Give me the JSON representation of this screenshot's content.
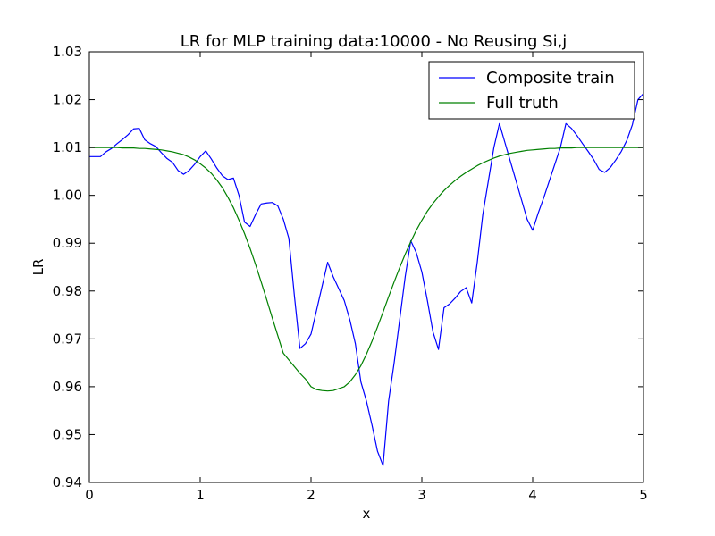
{
  "chart_data": {
    "type": "line",
    "title": "LR for MLP training data:10000 - No Reusing Si,j",
    "xlabel": "x",
    "ylabel": "LR",
    "xlim": [
      0,
      5
    ],
    "ylim": [
      0.94,
      1.03
    ],
    "xticks": [
      "0",
      "1",
      "2",
      "3",
      "4",
      "5"
    ],
    "yticks": [
      "0.94",
      "0.95",
      "0.96",
      "0.97",
      "0.98",
      "0.99",
      "1.00",
      "1.01",
      "1.02",
      "1.03"
    ],
    "grid": false,
    "legend_position": "upper right",
    "colors": {
      "composite": "#0000ff",
      "truth": "#008000"
    },
    "series": [
      {
        "name": "Composite train",
        "color": "#0000ff",
        "x": [
          0,
          0.05,
          0.1,
          0.15,
          0.2,
          0.25,
          0.3,
          0.35,
          0.4,
          0.45,
          0.5,
          0.55,
          0.6,
          0.65,
          0.7,
          0.75,
          0.8,
          0.85,
          0.9,
          0.95,
          1.0,
          1.05,
          1.1,
          1.15,
          1.2,
          1.25,
          1.3,
          1.35,
          1.4,
          1.45,
          1.5,
          1.55,
          1.6,
          1.65,
          1.7,
          1.75,
          1.8,
          1.85,
          1.9,
          1.95,
          2.0,
          2.05,
          2.1,
          2.15,
          2.2,
          2.25,
          2.3,
          2.35,
          2.4,
          2.45,
          2.5,
          2.55,
          2.6,
          2.65,
          2.7,
          2.75,
          2.8,
          2.85,
          2.9,
          2.95,
          3.0,
          3.05,
          3.1,
          3.15,
          3.2,
          3.25,
          3.3,
          3.35,
          3.4,
          3.45,
          3.5,
          3.55,
          3.6,
          3.65,
          3.7,
          3.75,
          3.8,
          3.85,
          3.9,
          3.95,
          4.0,
          4.05,
          4.1,
          4.15,
          4.2,
          4.25,
          4.3,
          4.35,
          4.4,
          4.45,
          4.5,
          4.55,
          4.6,
          4.65,
          4.7,
          4.75,
          4.8,
          4.85,
          4.9,
          4.95,
          5.0
        ],
        "y": [
          1.0081,
          1.0081,
          1.0081,
          1.0091,
          1.0098,
          1.0108,
          1.0117,
          1.0127,
          1.0139,
          1.014,
          1.0116,
          1.0108,
          1.0102,
          1.0089,
          1.0077,
          1.0069,
          1.0052,
          1.0044,
          1.0052,
          1.0065,
          1.0081,
          1.0093,
          1.0076,
          1.0057,
          1.0041,
          1.0033,
          1.0036,
          1.0,
          0.9944,
          0.9935,
          0.996,
          0.9982,
          0.9984,
          0.9985,
          0.9978,
          0.995,
          0.991,
          0.979,
          0.968,
          0.969,
          0.971,
          0.976,
          0.981,
          0.986,
          0.983,
          0.9805,
          0.978,
          0.974,
          0.969,
          0.961,
          0.957,
          0.952,
          0.9465,
          0.9435,
          0.957,
          0.965,
          0.974,
          0.983,
          0.9905,
          0.988,
          0.984,
          0.978,
          0.9715,
          0.9678,
          0.9765,
          0.9773,
          0.9785,
          0.9799,
          0.9807,
          0.9775,
          0.986,
          0.996,
          1.003,
          1.01,
          1.015,
          1.011,
          1.007,
          1.003,
          0.999,
          0.995,
          0.9927,
          0.9963,
          0.9995,
          1.003,
          1.0065,
          1.01,
          1.015,
          1.014,
          1.0125,
          1.0108,
          1.0092,
          1.0075,
          1.0054,
          1.0048,
          1.0058,
          1.0074,
          1.0092,
          1.0115,
          1.0148,
          1.02,
          1.0213
        ]
      },
      {
        "name": "Full truth",
        "color": "#008000",
        "x": [
          0,
          0.05,
          0.1,
          0.15,
          0.2,
          0.25,
          0.3,
          0.35,
          0.4,
          0.45,
          0.5,
          0.55,
          0.6,
          0.65,
          0.7,
          0.75,
          0.8,
          0.85,
          0.9,
          0.95,
          1.0,
          1.05,
          1.1,
          1.15,
          1.2,
          1.25,
          1.3,
          1.35,
          1.4,
          1.45,
          1.5,
          1.55,
          1.6,
          1.65,
          1.7,
          1.75,
          1.8,
          1.85,
          1.9,
          1.95,
          2.0,
          2.05,
          2.1,
          2.15,
          2.2,
          2.25,
          2.3,
          2.35,
          2.4,
          2.45,
          2.5,
          2.55,
          2.6,
          2.65,
          2.7,
          2.75,
          2.8,
          2.85,
          2.9,
          2.95,
          3.0,
          3.05,
          3.1,
          3.15,
          3.2,
          3.25,
          3.3,
          3.35,
          3.4,
          3.45,
          3.5,
          3.55,
          3.6,
          3.65,
          3.7,
          3.75,
          3.8,
          3.85,
          3.9,
          3.95,
          4.0,
          4.05,
          4.1,
          4.15,
          4.2,
          4.25,
          4.3,
          4.35,
          4.4,
          4.45,
          4.5,
          4.55,
          4.6,
          4.65,
          4.7,
          4.75,
          4.8,
          4.85,
          4.9,
          4.95,
          5.0
        ],
        "y": [
          1.01,
          1.01,
          1.01,
          1.01,
          1.01,
          1.01,
          1.0099,
          1.0099,
          1.0099,
          1.0098,
          1.0098,
          1.0097,
          1.0096,
          1.0095,
          1.0093,
          1.0091,
          1.0088,
          1.0085,
          1.008,
          1.0074,
          1.0066,
          1.0057,
          1.0046,
          1.0032,
          1.0016,
          0.9996,
          0.9974,
          0.9948,
          0.992,
          0.9889,
          0.9855,
          0.9819,
          0.9782,
          0.9744,
          0.9707,
          0.967,
          0.9656,
          0.9642,
          0.9628,
          0.9616,
          0.96,
          0.9594,
          0.9592,
          0.9591,
          0.9592,
          0.9596,
          0.96,
          0.961,
          0.9625,
          0.9644,
          0.9668,
          0.9695,
          0.9725,
          0.9756,
          0.9788,
          0.9819,
          0.9849,
          0.9877,
          0.9903,
          0.9927,
          0.9948,
          0.9967,
          0.9983,
          0.9997,
          1.001,
          1.0021,
          1.0031,
          1.004,
          1.0048,
          1.0055,
          1.0062,
          1.0068,
          1.0073,
          1.0078,
          1.0082,
          1.0085,
          1.0088,
          1.009,
          1.0092,
          1.0094,
          1.0095,
          1.0096,
          1.0097,
          1.0098,
          1.0098,
          1.0099,
          1.0099,
          1.0099,
          1.01,
          1.01,
          1.01,
          1.01,
          1.01,
          1.01,
          1.01,
          1.01,
          1.01,
          1.01,
          1.01,
          1.01,
          1.01
        ]
      }
    ]
  }
}
